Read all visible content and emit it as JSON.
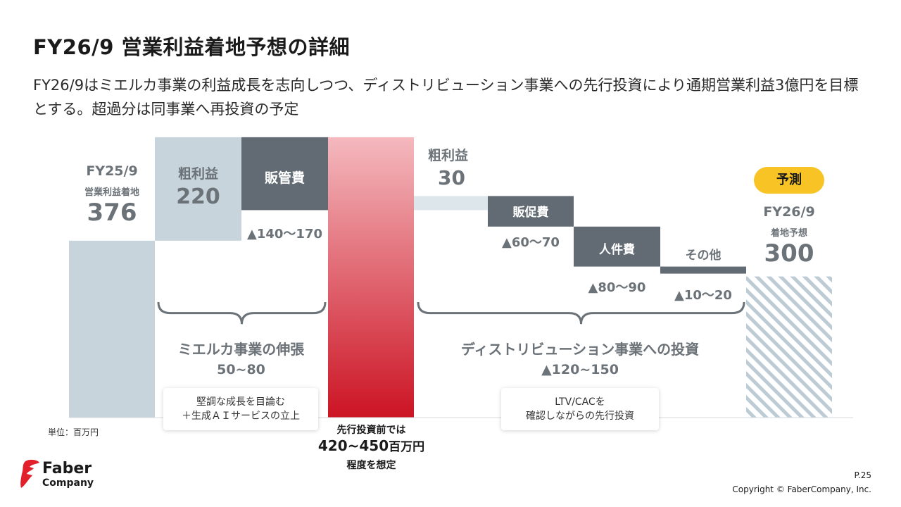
{
  "title": "FY26/9 営業利益着地予想の詳細",
  "subtitle": "FY26/9はミエルカ事業の利益成長を志向しつつ、ディストリビューション事業への先行投資により通期営業利益3億円を目標とする。超過分は同事業へ再投資の予定",
  "colors": {
    "base_bar": "#c7d4dc",
    "dark_bar": "#626b73",
    "light_bar": "#dde6ea",
    "red_top": "#f4b9be",
    "red_bottom": "#cc1424",
    "hatch": "#bccbd4",
    "bracket": "#6b7278"
  },
  "chart_data": {
    "type": "waterfall",
    "unit": "単位：百万円",
    "bars": [
      {
        "name": "FY25/9 営業利益着地",
        "value": 376
      },
      {
        "name": "粗利益",
        "value": 220
      },
      {
        "name": "販管費",
        "value_range": [
          -170,
          -140
        ]
      },
      {
        "name": "先行投資前",
        "value_range": [
          420,
          450
        ]
      },
      {
        "name": "粗利益",
        "value": 30
      },
      {
        "name": "販促費",
        "value_range": [
          -70,
          -60
        ]
      },
      {
        "name": "人件費",
        "value_range": [
          -90,
          -80
        ]
      },
      {
        "name": "その他",
        "value_range": [
          -20,
          -10
        ]
      },
      {
        "name": "FY26/9 着地予想",
        "value": 300
      }
    ],
    "groups": [
      {
        "name": "ミエルカ事業の伸張",
        "value": "50~80"
      },
      {
        "name": "ディストリビューション事業への投資",
        "value": "▲120~150"
      }
    ]
  },
  "labels": {
    "fy25_period": "FY25/9",
    "fy25_caption": "営業利益着地",
    "fy25_value": "376",
    "gross1_label": "粗利益",
    "gross1_value": "220",
    "sga_label": "販管費",
    "sga_value": "▲140〜170",
    "gross2_label": "粗利益",
    "gross2_value": "30",
    "promo_label": "販促費",
    "promo_value": "▲60〜70",
    "personnel_label": "人件費",
    "personnel_value": "▲80〜90",
    "other_label": "その他",
    "other_value": "▲10〜20",
    "forecast_badge": "予測",
    "fy26_period": "FY26/9",
    "fy26_caption": "着地予想",
    "fy26_value": "300",
    "group1_name": "ミエルカ事業の伸張",
    "group1_value": "50~80",
    "group2_name": "ディストリビューション事業への投資",
    "group2_value": "▲120~150",
    "note1_line1": "堅調な成長を目論む",
    "note1_line2": "＋生成ＡＩサービスの立上",
    "note2_line1": "LTV/CACを",
    "note2_line2": "確認しながらの先行投資",
    "pre_invest_line1": "先行投資前では",
    "pre_invest_value": "420~450",
    "pre_invest_unit": "百万円",
    "pre_invest_line3": "程度を想定",
    "unit": "単位：百万円"
  },
  "footer": {
    "logo_line1": "Faber",
    "logo_line2": "Company",
    "page": "P.25",
    "copyright": "Copyright © FaberCompany, Inc."
  }
}
